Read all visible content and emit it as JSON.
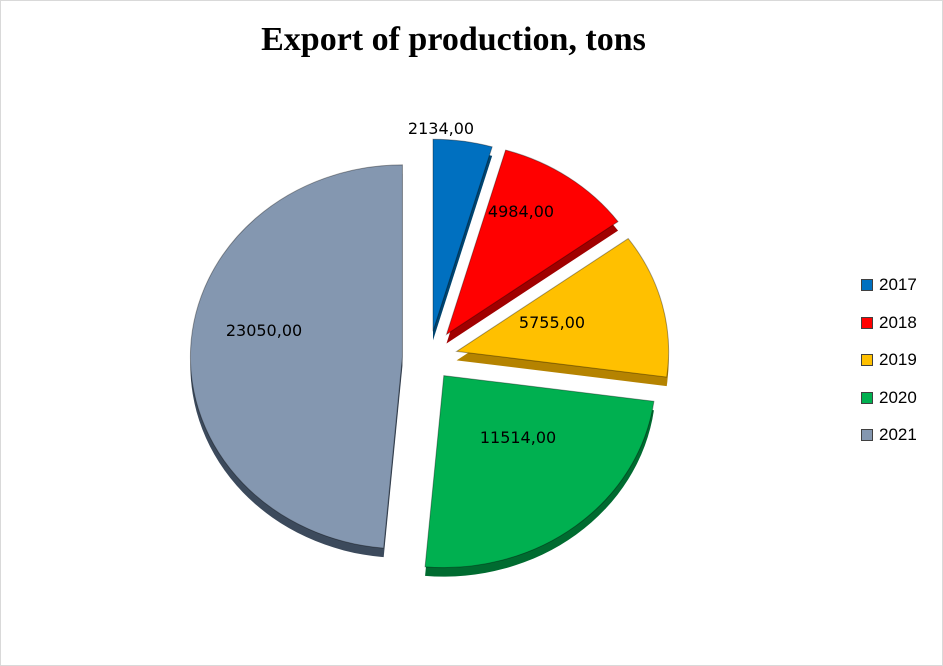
{
  "chart_data": {
    "type": "pie",
    "title": "Export of production, tons",
    "categories": [
      "2017",
      "2018",
      "2019",
      "2020",
      "2021"
    ],
    "values": [
      2134,
      4984,
      5755,
      11514,
      23050
    ],
    "data_labels": [
      "2134,00",
      "4984,00",
      "5755,00",
      "11514,00",
      "23050,00"
    ],
    "colors": [
      "#0070c0",
      "#ff0000",
      "#ffc000",
      "#00b050",
      "#8497b0"
    ],
    "side_colors": [
      "#00446f",
      "#a00000",
      "#b58300",
      "#006b30",
      "#3c4a5c"
    ],
    "exploded": true,
    "legend_position": "right"
  },
  "legend": {
    "items": [
      {
        "label": "2017",
        "color": "#0070c0"
      },
      {
        "label": "2018",
        "color": "#ff0000"
      },
      {
        "label": "2019",
        "color": "#ffc000"
      },
      {
        "label": "2020",
        "color": "#00b050"
      },
      {
        "label": "2021",
        "color": "#8497b0"
      }
    ]
  }
}
